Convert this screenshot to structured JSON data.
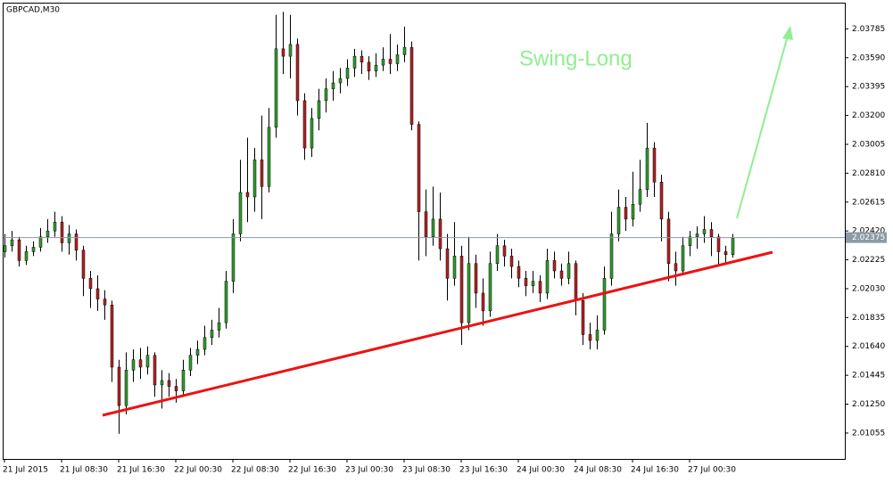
{
  "chart_data": {
    "type": "candlestick",
    "title": "GBPCAD,M30",
    "annotation": "Swing-Long",
    "up_color": "#2f9e2f",
    "down_color": "#b22222",
    "wick_color": "#000000",
    "ylim": [
      2.0088,
      2.0398
    ],
    "yticks": [
      2.03785,
      {
        "value": 2.0359,
        "label": "2.03590"
      },
      2.03395,
      {
        "value": 2.032,
        "label": "2.03200"
      },
      2.03005,
      {
        "value": 2.0281,
        "label": "2.02810"
      },
      2.02615,
      {
        "value": 2.0242,
        "label": "2.02420"
      },
      2.02225,
      {
        "value": 2.0203,
        "label": "2.02030"
      },
      2.01835,
      {
        "value": 2.0164,
        "label": "2.01640"
      },
      2.01445,
      {
        "value": 2.0125,
        "label": "2.01250"
      },
      2.01055
    ],
    "current_price": 2.02375,
    "categories": [
      "21 Jul 2015",
      null,
      null,
      null,
      null,
      null,
      null,
      null,
      "21 Jul 08:30",
      null,
      null,
      null,
      null,
      null,
      null,
      null,
      "21 Jul 16:30",
      null,
      null,
      null,
      null,
      null,
      null,
      null,
      "22 Jul 00:30",
      null,
      null,
      null,
      null,
      null,
      null,
      null,
      "22 Jul 08:30",
      null,
      null,
      null,
      null,
      null,
      null,
      null,
      "22 Jul 16:30",
      null,
      null,
      null,
      null,
      null,
      null,
      null,
      "23 Jul 00:30",
      null,
      null,
      null,
      null,
      null,
      null,
      null,
      "23 Jul 08:30",
      null,
      null,
      null,
      null,
      null,
      null,
      null,
      "23 Jul 16:30",
      null,
      null,
      null,
      null,
      null,
      null,
      null,
      "24 Jul 00:30",
      null,
      null,
      null,
      null,
      null,
      null,
      null,
      "24 Jul 08:30",
      null,
      null,
      null,
      null,
      null,
      null,
      null,
      "24 Jul 16:30",
      null,
      null,
      null,
      null,
      null,
      null,
      null,
      "27 Jul 00:30",
      null,
      null,
      null,
      null,
      null,
      null
    ],
    "ohlc": [
      [
        2.0228,
        2.024,
        2.0224,
        2.0232
      ],
      [
        2.0232,
        2.0242,
        2.0228,
        2.0236
      ],
      [
        2.0236,
        2.0238,
        2.0218,
        2.0222
      ],
      [
        2.0222,
        2.0232,
        2.0219,
        2.0228
      ],
      [
        2.0228,
        2.0235,
        2.0225,
        2.0231
      ],
      [
        2.0231,
        2.0244,
        2.0228,
        2.0238
      ],
      [
        2.0238,
        2.025,
        2.0234,
        2.0242
      ],
      [
        2.0242,
        2.0255,
        2.0238,
        2.0248
      ],
      [
        2.0248,
        2.0252,
        2.0228,
        2.0234
      ],
      [
        2.0234,
        2.0246,
        2.0226,
        2.024
      ],
      [
        2.024,
        2.0243,
        2.0222,
        2.0229
      ],
      [
        2.0229,
        2.0232,
        2.0198,
        2.021
      ],
      [
        2.021,
        2.0215,
        2.019,
        2.0203
      ],
      [
        2.0203,
        2.0212,
        2.0188,
        2.0196
      ],
      [
        2.0196,
        2.0202,
        2.0182,
        2.0192
      ],
      [
        2.0192,
        2.0195,
        2.014,
        2.015
      ],
      [
        2.015,
        2.0155,
        2.0105,
        2.0124
      ],
      [
        2.0124,
        2.016,
        2.0118,
        2.0148
      ],
      [
        2.0148,
        2.0162,
        2.014,
        2.0155
      ],
      [
        2.0155,
        2.0163,
        2.0142,
        2.015
      ],
      [
        2.015,
        2.0164,
        2.0145,
        2.0158
      ],
      [
        2.0158,
        2.016,
        2.013,
        2.0138
      ],
      [
        2.0138,
        2.0148,
        2.0122,
        2.0141
      ],
      [
        2.0141,
        2.0146,
        2.013,
        2.0137
      ],
      [
        2.0137,
        2.0142,
        2.0126,
        2.0134
      ],
      [
        2.0134,
        2.0155,
        2.013,
        2.0148
      ],
      [
        2.0148,
        2.0163,
        2.0144,
        2.0158
      ],
      [
        2.0158,
        2.0168,
        2.0152,
        2.0162
      ],
      [
        2.0162,
        2.0178,
        2.0158,
        2.017
      ],
      [
        2.017,
        2.0182,
        2.0165,
        2.0175
      ],
      [
        2.0175,
        2.019,
        2.017,
        2.018
      ],
      [
        2.018,
        2.0215,
        2.0176,
        2.0208
      ],
      [
        2.0208,
        2.025,
        2.02,
        2.024
      ],
      [
        2.024,
        2.029,
        2.0235,
        2.0268
      ],
      [
        2.0268,
        2.0305,
        2.0248,
        2.0265
      ],
      [
        2.0265,
        2.0298,
        2.0255,
        2.029
      ],
      [
        2.029,
        2.032,
        2.025,
        2.0272
      ],
      [
        2.0272,
        2.0325,
        2.0268,
        2.0312
      ],
      [
        2.0312,
        2.0388,
        2.0305,
        2.0365
      ],
      [
        2.0365,
        2.039,
        2.0348,
        2.036
      ],
      [
        2.036,
        2.0388,
        2.0345,
        2.0368
      ],
      [
        2.0368,
        2.0372,
        2.032,
        2.033
      ],
      [
        2.033,
        2.0335,
        2.029,
        2.0298
      ],
      [
        2.0298,
        2.0325,
        2.0292,
        2.0318
      ],
      [
        2.0318,
        2.0338,
        2.031,
        2.033
      ],
      [
        2.033,
        2.0345,
        2.0322,
        2.0338
      ],
      [
        2.0338,
        2.035,
        2.033,
        2.0342
      ],
      [
        2.0342,
        2.0352,
        2.0335,
        2.0345
      ],
      [
        2.0345,
        2.0358,
        2.034,
        2.0352
      ],
      [
        2.0352,
        2.0365,
        2.0346,
        2.036
      ],
      [
        2.036,
        2.0364,
        2.0348,
        2.0356
      ],
      [
        2.0356,
        2.036,
        2.0344,
        2.035
      ],
      [
        2.035,
        2.0362,
        2.0346,
        2.0354
      ],
      [
        2.0354,
        2.0366,
        2.035,
        2.0358
      ],
      [
        2.0358,
        2.0375,
        2.0348,
        2.0355
      ],
      [
        2.0355,
        2.0368,
        2.035,
        2.0361
      ],
      [
        2.0361,
        2.038,
        2.0356,
        2.0366
      ],
      [
        2.0366,
        2.037,
        2.031,
        2.0314
      ],
      [
        2.0314,
        2.0316,
        2.0222,
        2.0255
      ],
      [
        2.0255,
        2.027,
        2.0225,
        2.0238
      ],
      [
        2.0238,
        2.0272,
        2.0232,
        2.025
      ],
      [
        2.025,
        2.0268,
        2.0222,
        2.023
      ],
      [
        2.023,
        2.024,
        2.0195,
        2.021
      ],
      [
        2.021,
        2.0248,
        2.0205,
        2.0225
      ],
      [
        2.0225,
        2.0232,
        2.0165,
        2.018
      ],
      [
        2.018,
        2.0238,
        2.0175,
        2.022
      ],
      [
        2.022,
        2.0226,
        2.019,
        2.02
      ],
      [
        2.02,
        2.021,
        2.0178,
        2.0188
      ],
      [
        2.0188,
        2.0228,
        2.0184,
        2.022
      ],
      [
        2.022,
        2.024,
        2.0215,
        2.0232
      ],
      [
        2.0232,
        2.0236,
        2.0218,
        2.0225
      ],
      [
        2.0225,
        2.023,
        2.021,
        2.0218
      ],
      [
        2.0218,
        2.0222,
        2.0204,
        2.021
      ],
      [
        2.021,
        2.0215,
        2.0198,
        2.0205
      ],
      [
        2.0205,
        2.0215,
        2.02,
        2.0208
      ],
      [
        2.0208,
        2.0212,
        2.0194,
        2.02
      ],
      [
        2.02,
        2.023,
        2.0196,
        2.0222
      ],
      [
        2.0222,
        2.0228,
        2.021,
        2.0215
      ],
      [
        2.0215,
        2.022,
        2.0205,
        2.021
      ],
      [
        2.021,
        2.0228,
        2.0206,
        2.022
      ],
      [
        2.022,
        2.0222,
        2.0185,
        2.0195
      ],
      [
        2.0195,
        2.02,
        2.0165,
        2.0172
      ],
      [
        2.0172,
        2.018,
        2.0162,
        2.0168
      ],
      [
        2.0168,
        2.0185,
        2.0162,
        2.0175
      ],
      [
        2.0175,
        2.0218,
        2.0172,
        2.021
      ],
      [
        2.021,
        2.0255,
        2.0205,
        2.024
      ],
      [
        2.024,
        2.027,
        2.0235,
        2.0258
      ],
      [
        2.0258,
        2.0265,
        2.0242,
        2.025
      ],
      [
        2.025,
        2.0282,
        2.0245,
        2.026
      ],
      [
        2.026,
        2.029,
        2.0255,
        2.027
      ],
      [
        2.027,
        2.0315,
        2.0265,
        2.0298
      ],
      [
        2.0298,
        2.0302,
        2.0265,
        2.0275
      ],
      [
        2.0275,
        2.028,
        2.0235,
        2.025
      ],
      [
        2.025,
        2.0255,
        2.0208,
        2.022
      ],
      [
        2.022,
        2.0228,
        2.0205,
        2.0215
      ],
      [
        2.0215,
        2.0238,
        2.0212,
        2.0232
      ],
      [
        2.0232,
        2.0242,
        2.0225,
        2.0238
      ],
      [
        2.0238,
        2.0245,
        2.023,
        2.024
      ],
      [
        2.024,
        2.0252,
        2.0234,
        2.0243
      ],
      [
        2.0243,
        2.0248,
        2.0225,
        2.0238
      ],
      [
        2.0238,
        2.024,
        2.0218,
        2.0228
      ],
      [
        2.0228,
        2.0232,
        2.022,
        2.0226
      ],
      [
        2.0226,
        2.024,
        2.0224,
        2.0237
      ]
    ]
  }
}
